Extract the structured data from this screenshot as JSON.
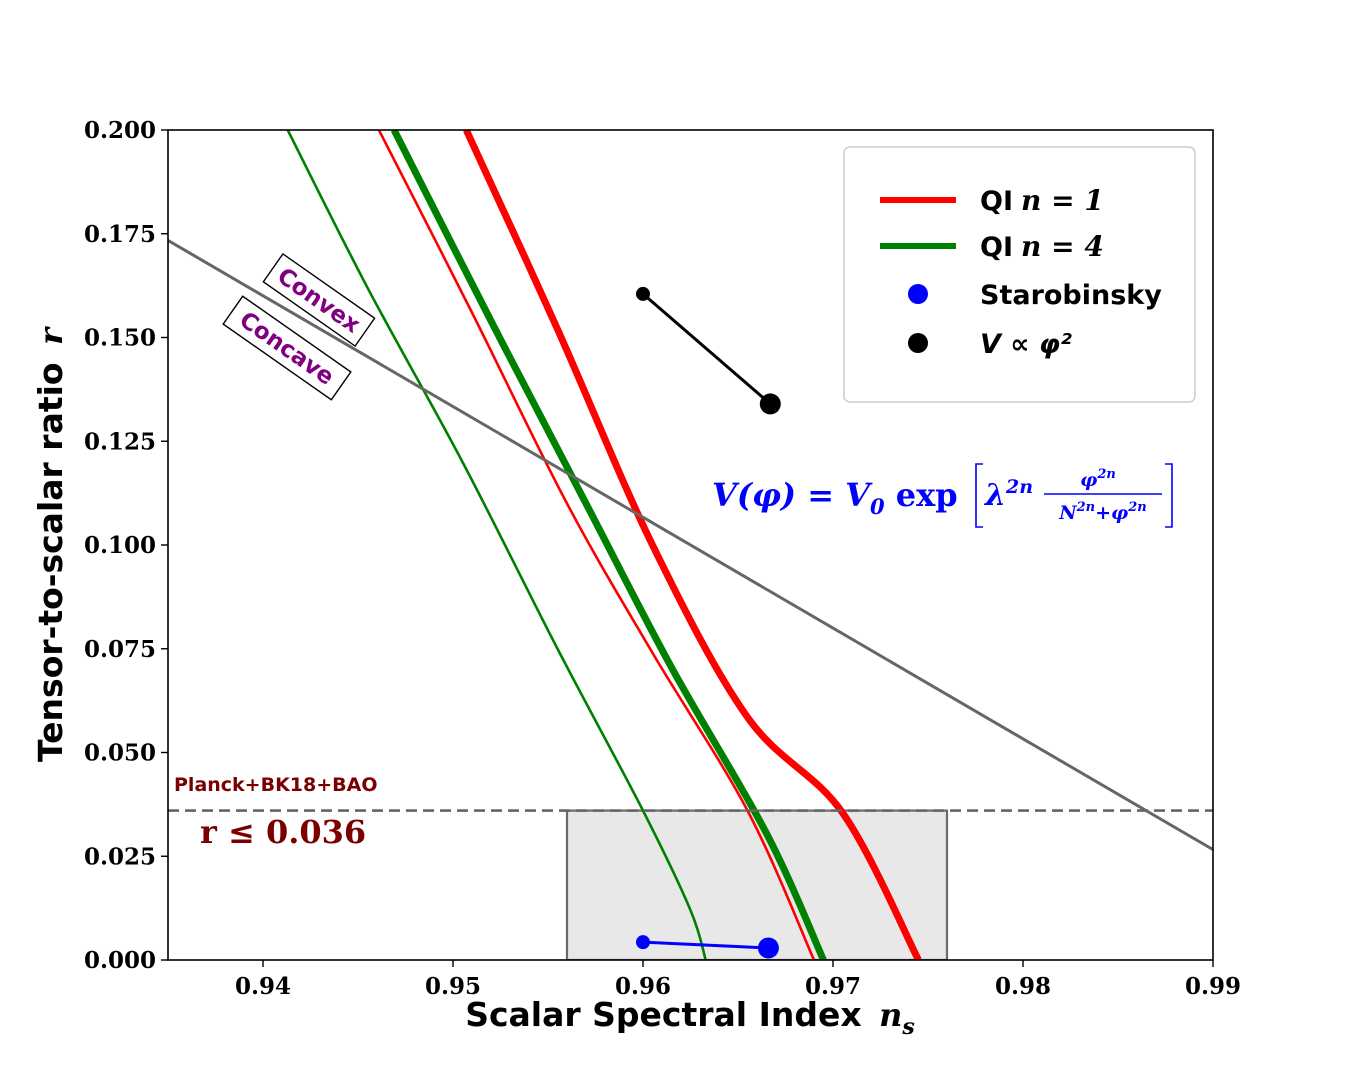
{
  "chart_data": {
    "type": "line",
    "xlabel": "Scalar Spectral Index",
    "xlabel_symbol": "n",
    "xlabel_sub": "s",
    "ylabel": "Tensor-to-scalar ratio",
    "ylabel_symbol": "r",
    "xlim": [
      0.935,
      0.99
    ],
    "ylim": [
      0.0,
      0.2
    ],
    "xticks": [
      0.94,
      0.95,
      0.96,
      0.97,
      0.98,
      0.99
    ],
    "xtick_labels": [
      "0.94",
      "0.95",
      "0.96",
      "0.97",
      "0.98",
      "0.99"
    ],
    "yticks": [
      0.0,
      0.025,
      0.05,
      0.075,
      0.1,
      0.125,
      0.15,
      0.175,
      0.2
    ],
    "ytick_labels": [
      "0.000",
      "0.025",
      "0.050",
      "0.075",
      "0.100",
      "0.125",
      "0.150",
      "0.175",
      "0.200"
    ],
    "grid": false,
    "legend_position": "top-right",
    "legend": [
      {
        "label": "QI",
        "math": "n = 1",
        "kind": "line",
        "color": "#ff0000"
      },
      {
        "label": "QI",
        "math": "n = 4",
        "kind": "line",
        "color": "#008000"
      },
      {
        "label": "Starobinsky",
        "math": "",
        "kind": "marker",
        "color": "#0000ff"
      },
      {
        "label": "",
        "math": "V ∝ φ²",
        "kind": "marker",
        "color": "#000000"
      }
    ],
    "series": [
      {
        "name": "QI n=1 (thick)",
        "color": "#ff0000",
        "weight": "thick",
        "x": [
          0.9507,
          0.9555,
          0.9605,
          0.9655,
          0.9705,
          0.9745
        ],
        "y": [
          0.2,
          0.152,
          0.1,
          0.0585,
          0.0355,
          0.0
        ]
      },
      {
        "name": "QI n=1 (thin)",
        "color": "#ff0000",
        "weight": "thin",
        "x": [
          0.9461,
          0.951,
          0.956,
          0.9605,
          0.9655,
          0.969
        ],
        "y": [
          0.2,
          0.156,
          0.11,
          0.074,
          0.036,
          0.0
        ]
      },
      {
        "name": "QI n=4 (thick)",
        "color": "#008000",
        "weight": "thick",
        "x": [
          0.9469,
          0.952,
          0.957,
          0.9615,
          0.9665,
          0.9695
        ],
        "y": [
          0.2,
          0.154,
          0.11,
          0.0705,
          0.0305,
          0.0
        ]
      },
      {
        "name": "QI n=4 (thin)",
        "color": "#008000",
        "weight": "thin",
        "x": [
          0.9413,
          0.9455,
          0.9505,
          0.9555,
          0.96,
          0.9625,
          0.9633
        ],
        "y": [
          0.2,
          0.162,
          0.12,
          0.075,
          0.036,
          0.012,
          0.0
        ]
      },
      {
        "name": "Starobinsky",
        "color": "#0000ff",
        "kind": "segment",
        "x": [
          0.96,
          0.9666
        ],
        "y": [
          0.0043,
          0.0029
        ]
      },
      {
        "name": "V ∝ φ²",
        "color": "#000000",
        "kind": "segment",
        "x": [
          0.96,
          0.9667
        ],
        "y": [
          0.1605,
          0.134
        ]
      },
      {
        "name": "Convex/Concave boundary",
        "color": "#666666",
        "kind": "reference-line",
        "x": [
          0.935,
          0.99
        ],
        "y": [
          0.1734,
          0.0266
        ]
      },
      {
        "name": "r bound",
        "color": "#666666",
        "kind": "dashed-hline",
        "x": [
          0.935,
          0.99
        ],
        "y": [
          0.036,
          0.036
        ]
      }
    ],
    "shaded_region": {
      "x": [
        0.956,
        0.976
      ],
      "y": [
        0.0,
        0.036
      ],
      "color": "#e8e8e8"
    },
    "annotations": {
      "convex": "Convex",
      "concave": "Concave",
      "planck": "Planck+BK18+BAO",
      "bound": "r ≤ 0.036",
      "formula_lhs": "V(φ) = V",
      "formula_sub": "0",
      "formula_exp": " exp",
      "formula_lambda": "λ",
      "formula_lambda_sup": "2n",
      "formula_num": "φ",
      "formula_num_sup": "2n",
      "formula_den": "N",
      "formula_den_sup1": "2n",
      "formula_den_plus": "+φ",
      "formula_den_sup2": "2n"
    }
  }
}
